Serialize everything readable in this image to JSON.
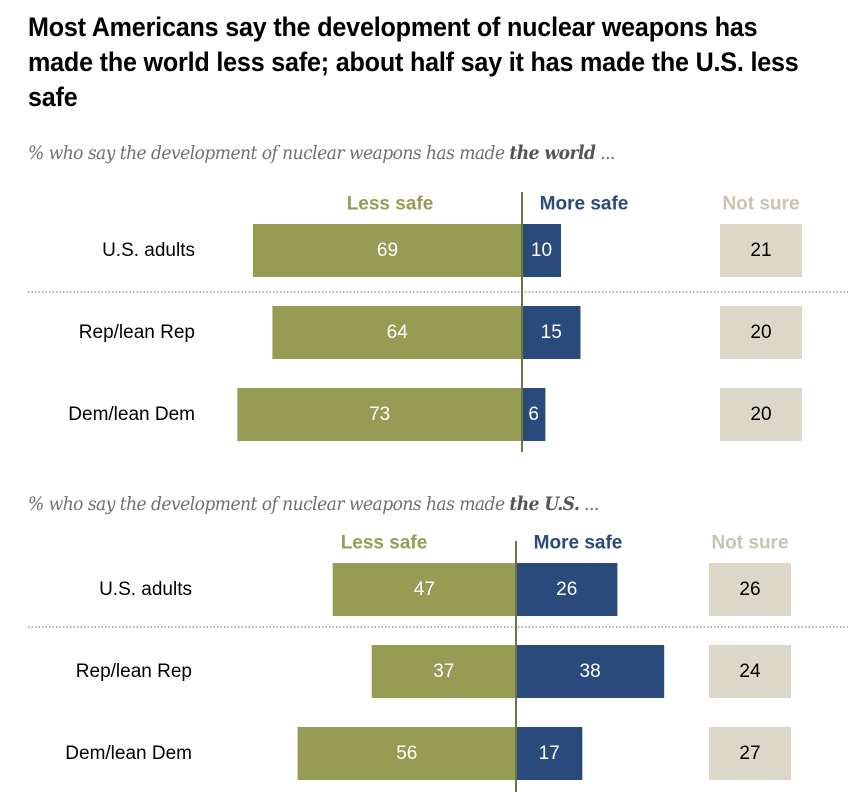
{
  "title": "Most Americans say the development of nuclear weapons has made the world less safe; about half say it has made the U.S. less safe",
  "colors": {
    "less_safe": "#969c54",
    "more_safe": "#2a4a7b",
    "not_sure": "#dbd8c9",
    "less_safe_header": "#969c54",
    "more_safe_header": "#2a4a7b",
    "not_sure_header": "#c8c4b0",
    "axis_line": "#6e7440",
    "value_on_dark": "#ffffff",
    "value_on_light": "#000000"
  },
  "chart_data": [
    {
      "type": "bar",
      "subtype": "diverging-stacked-bar",
      "subtitle_prefix": "% who say the development of nuclear weapons has made ",
      "subtitle_bold": "the world",
      "subtitle_suffix": " ...",
      "column_headers": {
        "less_safe": "Less safe",
        "more_safe": "More safe",
        "not_sure": "Not sure"
      },
      "categories": [
        "U.S. adults",
        "Rep/lean Rep",
        "Dem/lean Dem"
      ],
      "series": [
        {
          "name": "Less safe",
          "values": [
            69,
            64,
            73
          ]
        },
        {
          "name": "More safe",
          "values": [
            10,
            15,
            6
          ]
        },
        {
          "name": "Not sure",
          "values": [
            21,
            20,
            20
          ]
        }
      ],
      "units": "%"
    },
    {
      "type": "bar",
      "subtype": "diverging-stacked-bar",
      "subtitle_prefix": "% who say the development of nuclear weapons has made ",
      "subtitle_bold": "the U.S.",
      "subtitle_suffix": " ...",
      "column_headers": {
        "less_safe": "Less safe",
        "more_safe": "More safe",
        "not_sure": "Not sure"
      },
      "categories": [
        "U.S. adults",
        "Rep/lean Rep",
        "Dem/lean Dem"
      ],
      "series": [
        {
          "name": "Less safe",
          "values": [
            47,
            37,
            56
          ]
        },
        {
          "name": "More safe",
          "values": [
            26,
            38,
            17
          ]
        },
        {
          "name": "Not sure",
          "values": [
            26,
            24,
            27
          ]
        }
      ],
      "units": "%"
    }
  ]
}
